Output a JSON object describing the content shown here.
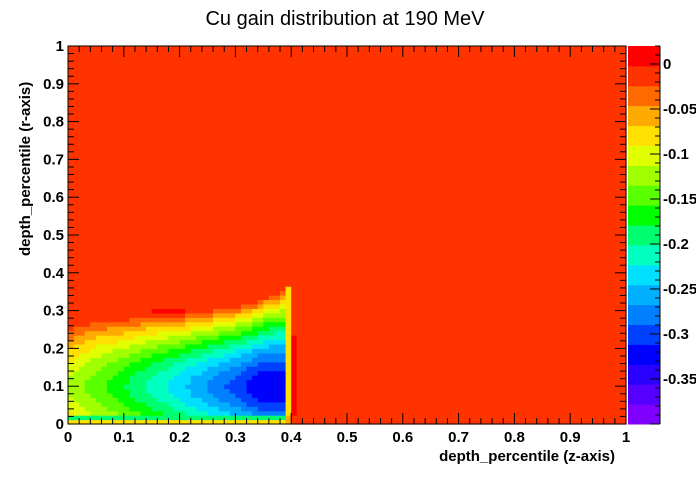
{
  "chart_data": {
    "type": "heatmap",
    "title": "Cu gain distribution at 190 MeV",
    "xlabel": "depth_percentile (z-axis)",
    "ylabel": "depth_percentile (r-axis)",
    "xlim": [
      0,
      1
    ],
    "ylim": [
      0,
      1
    ],
    "x_ticks": [
      "0",
      "0.1",
      "0.2",
      "0.3",
      "0.4",
      "0.5",
      "0.6",
      "0.7",
      "0.8",
      "0.9",
      "1"
    ],
    "y_ticks": [
      "0",
      "0.1",
      "0.2",
      "0.3",
      "0.4",
      "0.5",
      "0.6",
      "0.7",
      "0.8",
      "0.9",
      "1"
    ],
    "colorbar": {
      "range": [
        -0.4,
        0.02
      ],
      "ticks": [
        "0",
        "-0.05",
        "-0.1",
        "-0.15",
        "-0.2",
        "-0.25",
        "-0.3",
        "-0.35"
      ],
      "tick_values": [
        0,
        -0.05,
        -0.1,
        -0.15,
        -0.2,
        -0.25,
        -0.3,
        -0.35
      ],
      "levels": [
        "#7f00ff",
        "#5500ff",
        "#2a00ff",
        "#0000ff",
        "#0040ff",
        "#0080ff",
        "#00b0ff",
        "#00e0ff",
        "#00ffc0",
        "#00ff70",
        "#00ff00",
        "#5aff00",
        "#a0ff00",
        "#e0ff00",
        "#ffe000",
        "#ffaa00",
        "#ff6a00",
        "#ff3300",
        "#ff0000"
      ]
    },
    "background_value": -0.005,
    "region_boundary_x": 0.4,
    "region_top_profile": {
      "x": [
        0.0,
        0.05,
        0.1,
        0.15,
        0.2,
        0.25,
        0.3,
        0.33,
        0.36,
        0.38
      ],
      "y": [
        0.27,
        0.29,
        0.29,
        0.3,
        0.3,
        0.31,
        0.32,
        0.33,
        0.35,
        0.36
      ]
    },
    "minimum_location": {
      "x": 0.35,
      "y": 0.1,
      "value": -0.39
    },
    "edge_column": {
      "x": [
        0.4,
        0.41
      ],
      "y": [
        0.02,
        0.24
      ],
      "value": 0.015
    }
  }
}
